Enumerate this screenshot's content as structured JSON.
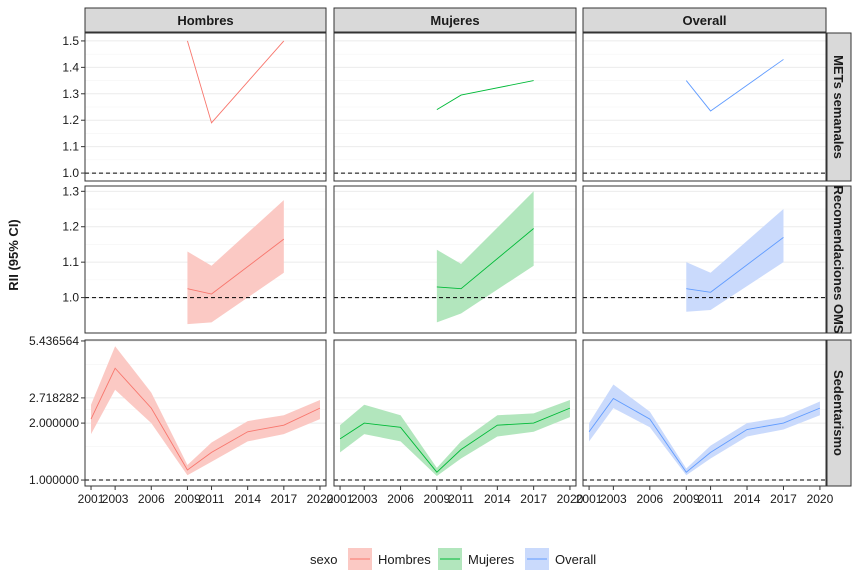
{
  "chart_data": {
    "type": "line",
    "ylabel": "RII (95% CI)",
    "xlabel": "",
    "legend": {
      "title": "sexo",
      "position": "bottom"
    },
    "reference_line": 1.0,
    "x_ticks": [
      2001,
      2003,
      2006,
      2009,
      2011,
      2014,
      2017,
      2020
    ],
    "x_range": [
      2000.5,
      2020.5
    ],
    "columns": [
      "Hombres",
      "Mujeres",
      "Overall"
    ],
    "colors": {
      "Hombres": "#F8766D",
      "Mujeres": "#00BA38",
      "Overall": "#619CFF"
    },
    "fills": {
      "Hombres": "#FBC9C4",
      "Mujeres": "#B2E6BD",
      "Overall": "#CADAFC"
    },
    "rows": [
      {
        "label": "METs semanales",
        "log": false,
        "ylim": [
          0.97,
          1.53
        ],
        "ticks": [
          {
            "v": 1.0,
            "label": "1.0"
          },
          {
            "v": 1.1,
            "label": "1.1"
          },
          {
            "v": 1.2,
            "label": "1.2"
          },
          {
            "v": 1.3,
            "label": "1.3"
          },
          {
            "v": 1.4,
            "label": "1.4"
          },
          {
            "v": 1.5,
            "label": "1.5"
          }
        ],
        "series": {
          "Hombres": {
            "x": [
              2009,
              2011,
              2017
            ],
            "y": [
              1.5,
              1.19,
              1.5
            ],
            "lo": null,
            "hi": null
          },
          "Mujeres": {
            "x": [
              2009,
              2011,
              2017
            ],
            "y": [
              1.24,
              1.295,
              1.35
            ],
            "lo": null,
            "hi": null
          },
          "Overall": {
            "x": [
              2009,
              2011,
              2017
            ],
            "y": [
              1.35,
              1.235,
              1.43
            ],
            "lo": null,
            "hi": null
          }
        }
      },
      {
        "label": "Recomendaciones OMS",
        "log": false,
        "ylim": [
          0.9,
          1.315
        ],
        "ticks": [
          {
            "v": 1.0,
            "label": "1.0"
          },
          {
            "v": 1.1,
            "label": "1.1"
          },
          {
            "v": 1.2,
            "label": "1.2"
          },
          {
            "v": 1.3,
            "label": "1.3"
          }
        ],
        "series": {
          "Hombres": {
            "x": [
              2009,
              2011,
              2017
            ],
            "y": [
              1.025,
              1.01,
              1.165
            ],
            "lo": [
              0.925,
              0.93,
              1.07
            ],
            "hi": [
              1.13,
              1.09,
              1.275
            ]
          },
          "Mujeres": {
            "x": [
              2009,
              2011,
              2017
            ],
            "y": [
              1.03,
              1.025,
              1.195
            ],
            "lo": [
              0.93,
              0.955,
              1.09
            ],
            "hi": [
              1.135,
              1.095,
              1.3
            ]
          },
          "Overall": {
            "x": [
              2009,
              2011,
              2017
            ],
            "y": [
              1.025,
              1.015,
              1.17
            ],
            "lo": [
              0.96,
              0.965,
              1.1
            ],
            "hi": [
              1.1,
              1.07,
              1.25
            ]
          }
        }
      },
      {
        "label": "Sedentarismo",
        "log": true,
        "ylim": [
          0.93,
          5.5
        ],
        "ticks": [
          {
            "v": 1.0,
            "label": "1.000000"
          },
          {
            "v": 2.0,
            "label": "2.000000"
          },
          {
            "v": 2.718282,
            "label": "2.718282"
          },
          {
            "v": 5.436564,
            "label": "5.436564"
          }
        ],
        "series": {
          "Hombres": {
            "x": [
              2001,
              2003,
              2006,
              2009,
              2011,
              2014,
              2017,
              2020
            ],
            "y": [
              2.1,
              3.9,
              2.4,
              1.13,
              1.4,
              1.8,
              1.95,
              2.4
            ],
            "lo": [
              1.75,
              3.0,
              2.0,
              1.06,
              1.25,
              1.6,
              1.75,
              2.1
            ],
            "hi": [
              2.5,
              5.1,
              2.9,
              1.2,
              1.58,
              2.05,
              2.2,
              2.65
            ]
          },
          "Mujeres": {
            "x": [
              2001,
              2003,
              2006,
              2009,
              2011,
              2014,
              2017,
              2020
            ],
            "y": [
              1.65,
              2.0,
              1.9,
              1.1,
              1.45,
              1.95,
              2.0,
              2.4
            ],
            "lo": [
              1.4,
              1.75,
              1.6,
              1.05,
              1.3,
              1.7,
              1.8,
              2.15
            ],
            "hi": [
              1.95,
              2.5,
              2.2,
              1.16,
              1.6,
              2.2,
              2.25,
              2.65
            ]
          },
          "Overall": {
            "x": [
              2001,
              2003,
              2006,
              2009,
              2011,
              2014,
              2017,
              2020
            ],
            "y": [
              1.8,
              2.7,
              2.1,
              1.1,
              1.4,
              1.85,
              2.0,
              2.4
            ],
            "lo": [
              1.6,
              2.4,
              1.9,
              1.06,
              1.3,
              1.7,
              1.85,
              2.2
            ],
            "hi": [
              2.0,
              3.2,
              2.3,
              1.15,
              1.52,
              2.0,
              2.15,
              2.6
            ]
          }
        }
      }
    ]
  }
}
